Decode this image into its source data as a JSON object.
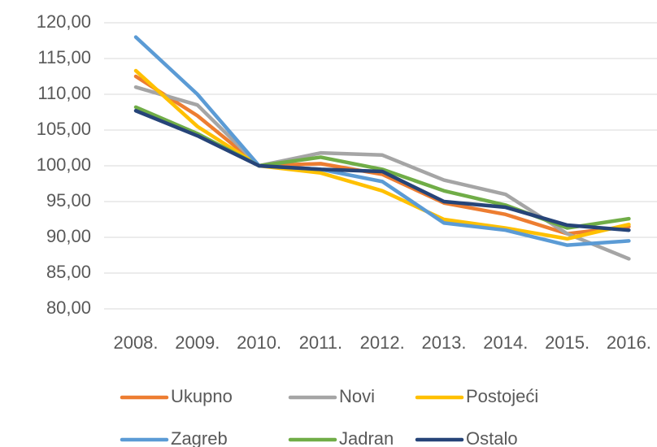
{
  "chart_data": {
    "type": "line",
    "categories": [
      "2008.",
      "2009.",
      "2010.",
      "2011.",
      "2012.",
      "2013.",
      "2014.",
      "2015.",
      "2016."
    ],
    "series": [
      {
        "name": "Ukupno",
        "color": "#ED7D31",
        "values": [
          112.5,
          107,
          100,
          100.3,
          98.8,
          94.8,
          93.2,
          90.5,
          91.5
        ]
      },
      {
        "name": "Novi",
        "color": "#A5A5A5",
        "values": [
          111,
          108.5,
          100,
          101.8,
          101.5,
          98,
          96,
          90.5,
          87
        ]
      },
      {
        "name": "Postojeći",
        "color": "#FFC000",
        "values": [
          113.3,
          105.5,
          100,
          99,
          96.5,
          92.5,
          91.3,
          89.8,
          91.8
        ]
      },
      {
        "name": "Zagreb",
        "color": "#5B9BD5",
        "values": [
          118,
          110,
          100,
          99.5,
          97.8,
          92,
          91,
          88.9,
          89.5
        ]
      },
      {
        "name": "Jadran",
        "color": "#70AD47",
        "values": [
          108.2,
          104.5,
          100,
          101.2,
          99.5,
          96.5,
          94.5,
          91.3,
          92.6
        ]
      },
      {
        "name": "Ostalo",
        "color": "#264478",
        "values": [
          107.7,
          104.2,
          100,
          99.5,
          99.2,
          95,
          94.2,
          91.7,
          91
        ]
      }
    ],
    "ylim": [
      80,
      120
    ],
    "yticks": [
      {
        "value": 80,
        "label": "80,00"
      },
      {
        "value": 85,
        "label": "85,00"
      },
      {
        "value": 90,
        "label": "90,00"
      },
      {
        "value": 95,
        "label": "95,00"
      },
      {
        "value": 100,
        "label": "100,00"
      },
      {
        "value": 105,
        "label": "105,00"
      },
      {
        "value": 110,
        "label": "110,00"
      },
      {
        "value": 115,
        "label": "115,00"
      },
      {
        "value": 120,
        "label": "120,00"
      }
    ],
    "grid": true,
    "legend": "bottom"
  }
}
